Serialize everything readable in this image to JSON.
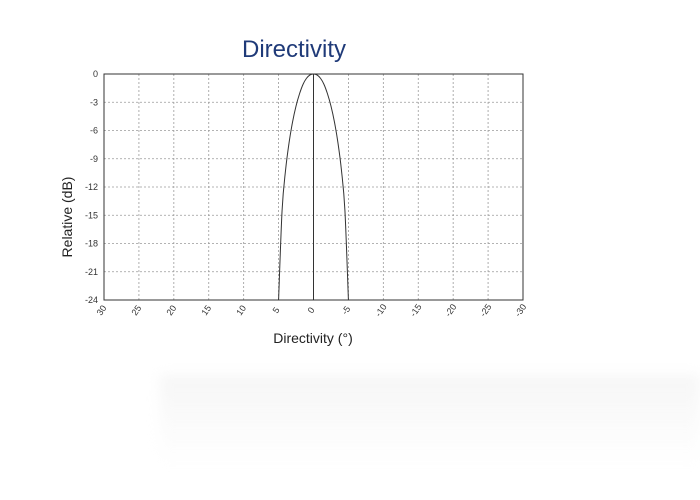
{
  "chart_data": {
    "type": "line",
    "title": "Directivity",
    "xlabel": "Directivity (°)",
    "ylabel": "Relative (dB)",
    "x_ticks": [
      30,
      25,
      20,
      15,
      10,
      5,
      0,
      -5,
      -10,
      -15,
      -20,
      -25,
      -30
    ],
    "y_ticks": [
      0,
      -3,
      -6,
      -9,
      -12,
      -15,
      -18,
      -21,
      -24
    ],
    "xlim": [
      30,
      -30
    ],
    "ylim": [
      -24,
      0
    ],
    "grid": true,
    "series": [
      {
        "x": [
          5,
          4.5,
          4,
          3.5,
          3,
          2.5,
          2,
          1.5,
          1,
          0.5,
          0,
          -0.5,
          -1,
          -1.5,
          -2,
          -2.5,
          -3,
          -3.5,
          -4,
          -4.5,
          -5
        ],
        "y": [
          -24,
          -14.5,
          -10.2,
          -7.3,
          -5.1,
          -3.4,
          -2.1,
          -1.1,
          -0.45,
          -0.1,
          0,
          -0.1,
          -0.45,
          -1.1,
          -2.1,
          -3.4,
          -5.1,
          -7.3,
          -10.2,
          -14.5,
          -24
        ]
      }
    ],
    "colors": {
      "line": "#333333",
      "grid": "#9a9a9a",
      "title": "#1f3a78"
    }
  }
}
